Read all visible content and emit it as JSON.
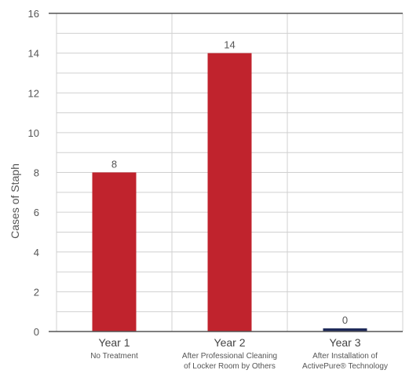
{
  "chart_data": {
    "type": "bar",
    "title": "",
    "ylabel": "Cases of Staph",
    "xlabel": "",
    "ylim": [
      0,
      16
    ],
    "yticks": [
      0,
      2,
      4,
      6,
      8,
      10,
      12,
      14,
      16
    ],
    "grid": true,
    "categories": [
      {
        "label": "Year 1",
        "sublabel": [
          "No Treatment"
        ]
      },
      {
        "label": "Year 2",
        "sublabel": [
          "After Professional Cleaning",
          "of Locker Room by Others"
        ]
      },
      {
        "label": "Year 3",
        "sublabel": [
          "After Installation of",
          "ActivePure® Technology"
        ]
      }
    ],
    "values": [
      8,
      14,
      0
    ],
    "data_labels": [
      "8",
      "14",
      "0"
    ],
    "bar_colors": [
      "#c0232d",
      "#c0232d",
      "#1f2a5a"
    ],
    "colors": {
      "axis": "#555555",
      "grid": "#d0d0d0"
    }
  }
}
